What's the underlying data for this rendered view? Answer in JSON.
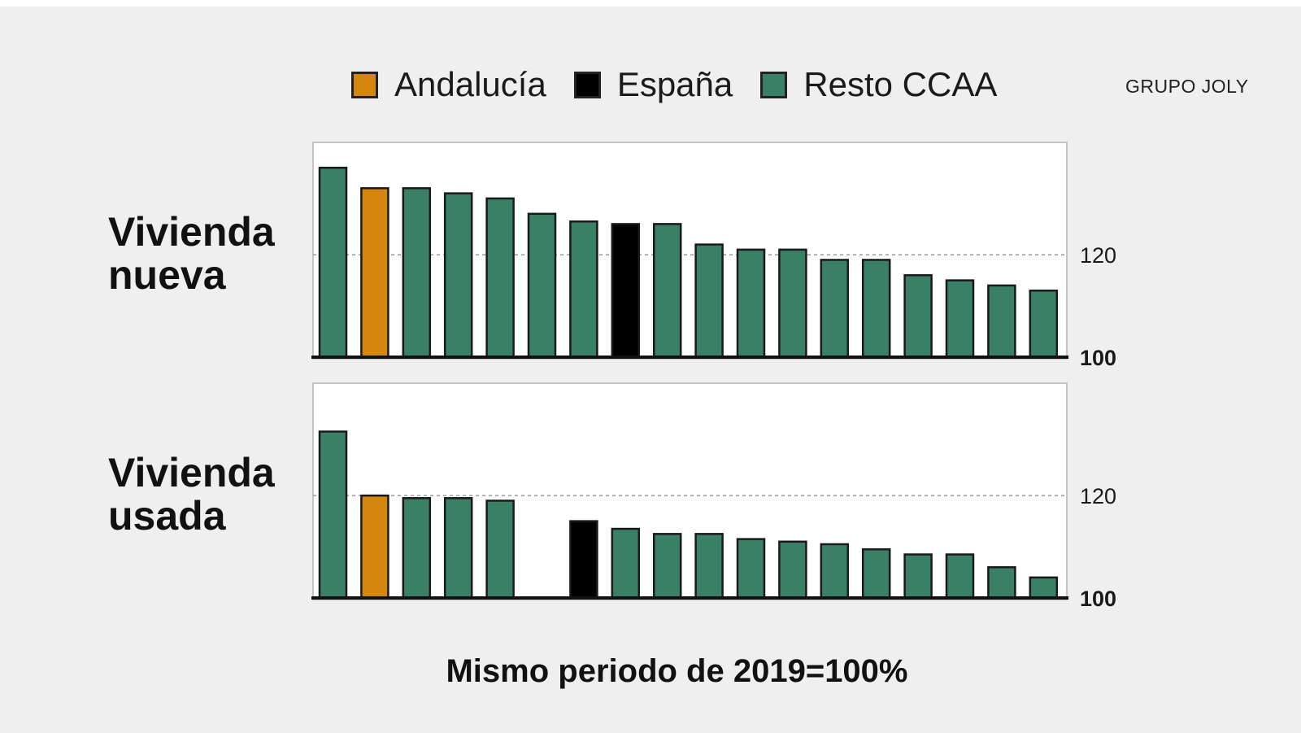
{
  "brand": "GRUPO JOLY",
  "footnote": "Mismo periodo de 2019=100%",
  "legend": [
    {
      "label": "Andalucía",
      "color": "#d4860f"
    },
    {
      "label": "España",
      "color": "#000000"
    },
    {
      "label": "Resto CCAA",
      "color": "#3a8067"
    }
  ],
  "chart_data": [
    {
      "type": "bar",
      "title_lines": [
        "Vivienda",
        "nueva"
      ],
      "ylim": [
        100,
        141
      ],
      "y_ticks": [
        {
          "value": 100,
          "label": "100",
          "bold": true
        },
        {
          "value": 120,
          "label": "120",
          "bold": false
        }
      ],
      "reference_line": 120,
      "series": [
        {
          "name": "Resto CCAA",
          "color": "#3a8067",
          "values": [
            137,
            null,
            133,
            132,
            131,
            128,
            126.5,
            null,
            126,
            122,
            121,
            121,
            119,
            119,
            116,
            115,
            114,
            113
          ]
        },
        {
          "name": "Andalucía",
          "color": "#d4860f",
          "values": [
            null,
            133,
            null,
            null,
            null,
            null,
            null,
            null,
            null,
            null,
            null,
            null,
            null,
            null,
            null,
            null,
            null,
            null
          ]
        },
        {
          "name": "España",
          "color": "#000000",
          "values": [
            null,
            null,
            null,
            null,
            null,
            null,
            null,
            126,
            null,
            null,
            null,
            null,
            null,
            null,
            null,
            null,
            null,
            null
          ]
        }
      ]
    },
    {
      "type": "bar",
      "title_lines": [
        "Vivienda",
        "usada"
      ],
      "ylim": [
        100,
        141
      ],
      "y_ticks": [
        {
          "value": 100,
          "label": "100",
          "bold": true
        },
        {
          "value": 120,
          "label": "120",
          "bold": false
        }
      ],
      "reference_line": 120,
      "series": [
        {
          "name": "Resto CCAA",
          "color": "#3a8067",
          "values": [
            132.5,
            null,
            119.5,
            119.5,
            119,
            null,
            null,
            113.5,
            112.5,
            112.5,
            111.5,
            111,
            110.5,
            109.5,
            108.5,
            108.5,
            106,
            104
          ]
        },
        {
          "name": "Andalucía",
          "color": "#d4860f",
          "values": [
            null,
            120,
            null,
            null,
            null,
            null,
            null,
            null,
            null,
            null,
            null,
            null,
            null,
            null,
            null,
            null,
            null,
            null
          ]
        },
        {
          "name": "España",
          "color": "#000000",
          "values": [
            null,
            null,
            null,
            null,
            null,
            null,
            115,
            null,
            null,
            null,
            null,
            null,
            null,
            null,
            null,
            null,
            null,
            null
          ]
        }
      ]
    }
  ]
}
